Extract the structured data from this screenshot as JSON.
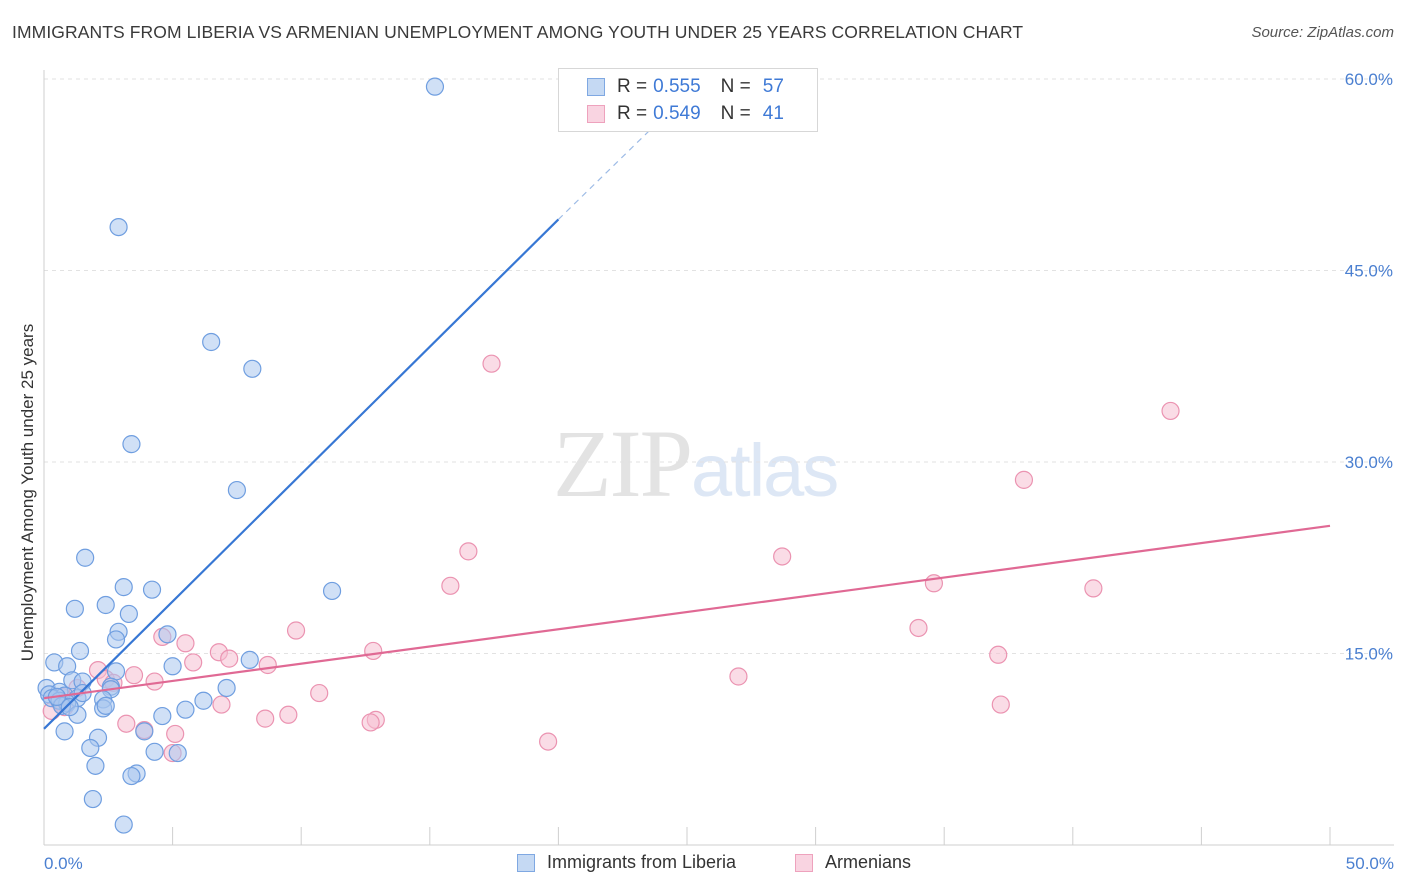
{
  "title": "IMMIGRANTS FROM LIBERIA VS ARMENIAN UNEMPLOYMENT AMONG YOUTH UNDER 25 YEARS CORRELATION CHART",
  "source": "Source: ZipAtlas.com",
  "watermark": {
    "zip": "ZIP",
    "atlas": "atlas"
  },
  "legend": {
    "r_label": "R = ",
    "n_label": "N = ",
    "rows": [
      {
        "r": "0.555",
        "n": "57"
      },
      {
        "r": "0.549",
        "n": "41"
      }
    ]
  },
  "colors": {
    "blue_fill": "#a9c6ee",
    "blue_stroke": "#6f9ee0",
    "blue_line": "#3777d4",
    "pink_fill": "#f6c0d1",
    "pink_stroke": "#eb93b1",
    "pink_line": "#e06994",
    "tick_text": "#4a7fd0",
    "grid": "#e2e2e2"
  },
  "chart_data": {
    "type": "scatter",
    "title": "IMMIGRANTS FROM LIBERIA VS ARMENIAN UNEMPLOYMENT AMONG YOUTH UNDER 25 YEARS CORRELATION CHART",
    "xlabel": "",
    "ylabel": "Unemployment Among Youth under 25 years",
    "xlim": [
      0,
      50
    ],
    "ylim": [
      0,
      60
    ],
    "x_tick_labels": [
      "0.0%",
      "50.0%"
    ],
    "y_ticks": [
      15,
      30,
      45,
      60
    ],
    "y_tick_labels": [
      "15.0%",
      "30.0%",
      "45.0%",
      "60.0%"
    ],
    "series": [
      {
        "name": "Immigrants from Liberia",
        "r": 0.555,
        "n": 57,
        "trend": {
          "x0": 0.0,
          "y0": 9.1,
          "x1": 20.0,
          "y1": 49.0,
          "dash_to_x": 26.0,
          "dash_to_y": 60.8
        },
        "points": [
          [
            15.2,
            59.4
          ],
          [
            2.9,
            48.4
          ],
          [
            6.5,
            39.4
          ],
          [
            8.1,
            37.3
          ],
          [
            3.4,
            31.4
          ],
          [
            7.5,
            27.8
          ],
          [
            1.6,
            22.5
          ],
          [
            3.1,
            20.2
          ],
          [
            4.2,
            20.0
          ],
          [
            11.2,
            19.9
          ],
          [
            2.4,
            18.8
          ],
          [
            1.2,
            18.5
          ],
          [
            3.3,
            18.1
          ],
          [
            2.9,
            16.7
          ],
          [
            4.8,
            16.5
          ],
          [
            2.8,
            16.1
          ],
          [
            1.4,
            15.2
          ],
          [
            8.0,
            14.5
          ],
          [
            0.4,
            14.3
          ],
          [
            5.0,
            14.0
          ],
          [
            0.9,
            14.0
          ],
          [
            2.8,
            13.6
          ],
          [
            1.1,
            12.9
          ],
          [
            1.5,
            12.8
          ],
          [
            2.6,
            12.4
          ],
          [
            0.1,
            12.3
          ],
          [
            0.6,
            12.0
          ],
          [
            7.1,
            12.3
          ],
          [
            2.6,
            12.2
          ],
          [
            0.2,
            11.8
          ],
          [
            0.8,
            11.7
          ],
          [
            1.3,
            11.5
          ],
          [
            1.5,
            11.9
          ],
          [
            0.3,
            11.5
          ],
          [
            0.6,
            11.3
          ],
          [
            0.9,
            11.1
          ],
          [
            0.7,
            10.9
          ],
          [
            2.3,
            11.4
          ],
          [
            6.2,
            11.3
          ],
          [
            2.3,
            10.7
          ],
          [
            2.4,
            10.9
          ],
          [
            5.5,
            10.6
          ],
          [
            1.3,
            10.2
          ],
          [
            4.6,
            10.1
          ],
          [
            3.9,
            8.9
          ],
          [
            0.8,
            8.9
          ],
          [
            2.1,
            8.4
          ],
          [
            1.8,
            7.6
          ],
          [
            4.3,
            7.3
          ],
          [
            5.2,
            7.2
          ],
          [
            2.0,
            6.2
          ],
          [
            3.6,
            5.6
          ],
          [
            3.4,
            5.4
          ],
          [
            1.9,
            3.6
          ],
          [
            3.1,
            1.6
          ],
          [
            0.5,
            11.6
          ],
          [
            1.0,
            10.8
          ]
        ]
      },
      {
        "name": "Armenians",
        "r": 0.549,
        "n": 41,
        "trend": {
          "x0": 0.0,
          "y0": 11.5,
          "x1": 50.0,
          "y1": 25.0
        },
        "points": [
          [
            17.4,
            37.7
          ],
          [
            43.8,
            34.0
          ],
          [
            38.1,
            28.6
          ],
          [
            16.5,
            23.0
          ],
          [
            28.7,
            22.6
          ],
          [
            15.8,
            20.3
          ],
          [
            34.6,
            20.5
          ],
          [
            40.8,
            20.1
          ],
          [
            34.0,
            17.0
          ],
          [
            9.8,
            16.8
          ],
          [
            4.6,
            16.3
          ],
          [
            5.5,
            15.8
          ],
          [
            12.8,
            15.2
          ],
          [
            6.8,
            15.1
          ],
          [
            37.1,
            14.9
          ],
          [
            7.2,
            14.6
          ],
          [
            5.8,
            14.3
          ],
          [
            8.7,
            14.1
          ],
          [
            2.1,
            13.7
          ],
          [
            3.5,
            13.3
          ],
          [
            2.4,
            13.0
          ],
          [
            4.3,
            12.8
          ],
          [
            27.0,
            13.2
          ],
          [
            1.3,
            12.3
          ],
          [
            2.7,
            12.7
          ],
          [
            10.7,
            11.9
          ],
          [
            0.6,
            11.2
          ],
          [
            0.8,
            10.8
          ],
          [
            0.3,
            10.5
          ],
          [
            6.9,
            11.0
          ],
          [
            37.2,
            11.0
          ],
          [
            9.5,
            10.2
          ],
          [
            8.6,
            9.9
          ],
          [
            12.9,
            9.8
          ],
          [
            12.7,
            9.6
          ],
          [
            3.2,
            9.5
          ],
          [
            3.9,
            9.0
          ],
          [
            5.1,
            8.7
          ],
          [
            19.6,
            8.1
          ],
          [
            5.0,
            7.2
          ],
          [
            0.7,
            11.6
          ]
        ]
      }
    ]
  },
  "bottom_legend": [
    {
      "label": "Immigrants from Liberia"
    },
    {
      "label": "Armenians"
    }
  ]
}
